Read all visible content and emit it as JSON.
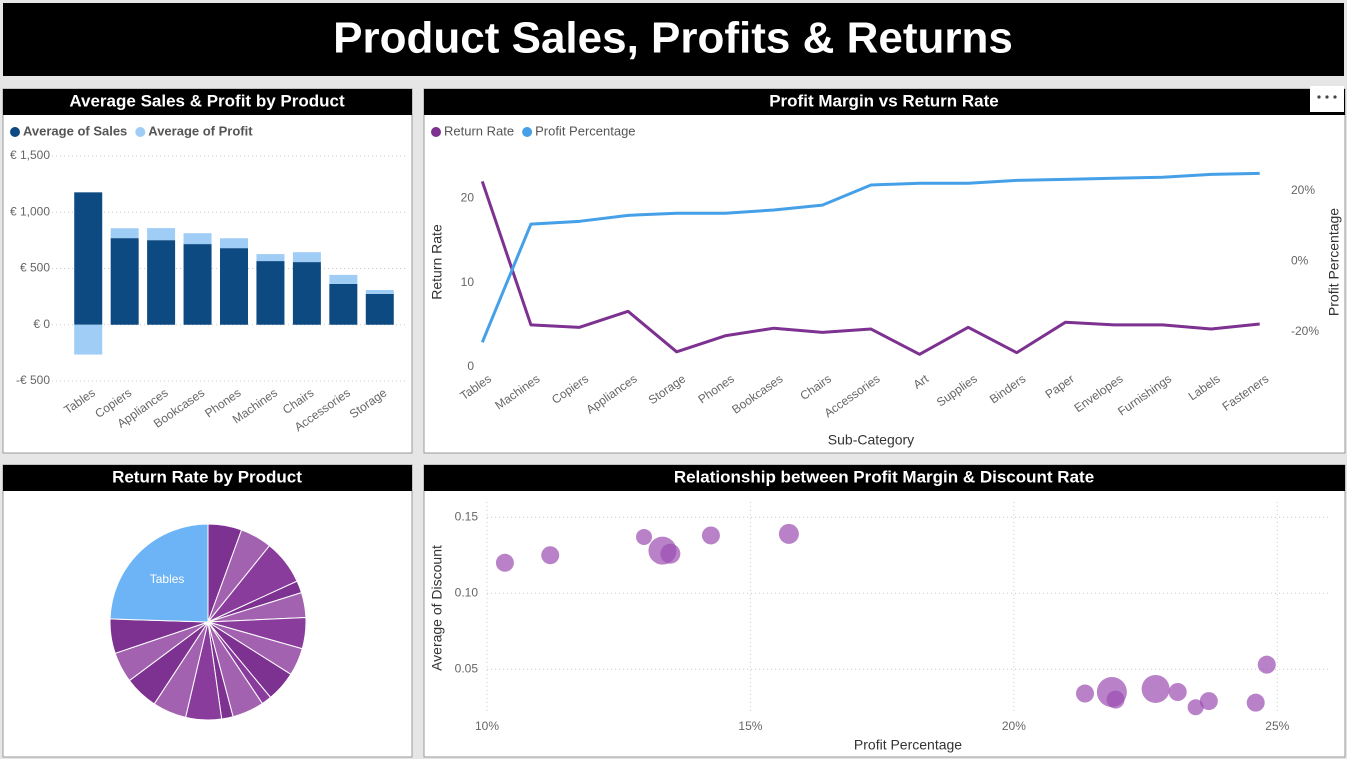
{
  "header": {
    "title": "Product Sales, Profits & Returns"
  },
  "chart_data": [
    {
      "type": "bar",
      "stacked": true,
      "title": "Average Sales & Profit by Product",
      "categories": [
        "Tables",
        "Copiers",
        "Appliances",
        "Bookcases",
        "Phones",
        "Machines",
        "Chairs",
        "Accessories",
        "Storage"
      ],
      "series": [
        {
          "name": "Average of Sales",
          "color": "#0d4a82",
          "values": [
            1177,
            770,
            752,
            717,
            681,
            566,
            557,
            363,
            274
          ]
        },
        {
          "name": "Average of Profit",
          "color": "#a0cdf5",
          "values": [
            -265,
            88,
            107,
            97,
            88,
            62,
            88,
            80,
            35
          ]
        }
      ],
      "ylim": [
        -500,
        1500
      ],
      "yticks": [
        {
          "value": -500,
          "label": "-€ 500"
        },
        {
          "value": 0,
          "label": "€ 0"
        },
        {
          "value": 500,
          "label": "€ 500"
        },
        {
          "value": 1000,
          "label": "€ 1,000"
        },
        {
          "value": 1500,
          "label": "€ 1,500"
        }
      ],
      "grid": true,
      "legend": "top-left"
    },
    {
      "type": "line",
      "title": "Profit Margin vs Return Rate",
      "categories": [
        "Tables",
        "Machines",
        "Copiers",
        "Appliances",
        "Storage",
        "Phones",
        "Bookcases",
        "Chairs",
        "Accessories",
        "Art",
        "Supplies",
        "Binders",
        "Paper",
        "Envelopes",
        "Furnishings",
        "Labels",
        "Fasteners"
      ],
      "x_label": "Sub-Category",
      "y_label": "Return Rate",
      "y2_label": "Profit Percentage",
      "series": [
        {
          "name": "Return Rate",
          "color": "#7d3190",
          "values": [
            22.0,
            5.0,
            4.7,
            6.6,
            1.8,
            3.7,
            4.6,
            4.1,
            4.5,
            1.5,
            4.7,
            1.7,
            5.3,
            5.0,
            5.0,
            4.5,
            5.1
          ]
        },
        {
          "name": "Profit Percentage",
          "color": "#45a0e8",
          "axis": "y2",
          "values": [
            -23,
            10.5,
            11.3,
            13.0,
            13.6,
            13.6,
            14.5,
            15.9,
            21.6,
            22.1,
            22.1,
            22.9,
            23.2,
            23.5,
            23.8,
            24.6,
            24.9
          ]
        }
      ],
      "ylim": [
        0,
        23
      ],
      "yticks": [
        0,
        10,
        20
      ],
      "y2lim": [
        -30,
        25
      ],
      "y2ticks": [
        {
          "value": -20,
          "label": "-20%"
        },
        {
          "value": 0,
          "label": "0%"
        },
        {
          "value": 20,
          "label": "20%"
        }
      ],
      "legend": "top-left"
    },
    {
      "type": "pie",
      "title": "Return Rate by Product",
      "categories": [
        null,
        null,
        null,
        null,
        null,
        null,
        null,
        null,
        null,
        null,
        null,
        null,
        null,
        null,
        null,
        null,
        "Tables"
      ],
      "values": [
        5.0,
        4.7,
        6.6,
        1.8,
        3.7,
        4.6,
        4.1,
        4.5,
        1.5,
        4.7,
        1.7,
        5.3,
        5.0,
        5.0,
        4.5,
        5.1,
        22.0
      ],
      "colors": [
        "#7d3190",
        "#a262b0",
        "#8a3c9c",
        "#7d3190",
        "#a262b0",
        "#8a3c9c",
        "#a262b0",
        "#7d3190",
        "#8a3c9c",
        "#a262b0",
        "#7d3190",
        "#8a3c9c",
        "#a262b0",
        "#7d3190",
        "#a262b0",
        "#7d3190",
        "#6cb4f5"
      ]
    },
    {
      "type": "scatter",
      "title": "Relationship between Profit Margin & Discount Rate",
      "x_label": "Profit Percentage",
      "y_label": "Average of Discount",
      "x": [
        10.34,
        11.2,
        12.98,
        13.33,
        13.48,
        14.25,
        15.73,
        21.35,
        21.86,
        21.93,
        22.69,
        23.11,
        23.45,
        23.7,
        24.59,
        24.8
      ],
      "values": [
        0.12,
        0.125,
        0.137,
        0.128,
        0.126,
        0.138,
        0.139,
        0.034,
        0.035,
        0.03,
        0.037,
        0.035,
        0.025,
        0.029,
        0.028,
        0.053
      ],
      "sizes": [
        9,
        9,
        8,
        14,
        10,
        9,
        10,
        9,
        15,
        9,
        14,
        9,
        8,
        9,
        9,
        9
      ],
      "color": "#9b4db0",
      "xlim": [
        10,
        26
      ],
      "xticks": [
        {
          "value": 10,
          "label": "10%"
        },
        {
          "value": 15,
          "label": "15%"
        },
        {
          "value": 20,
          "label": "20%"
        },
        {
          "value": 25,
          "label": "25%"
        }
      ],
      "ylim": [
        0.01,
        0.16
      ],
      "yticks": [
        0.05,
        {
          "value": 0.1,
          "label": "0.10"
        },
        0.15
      ],
      "grid": true
    }
  ]
}
